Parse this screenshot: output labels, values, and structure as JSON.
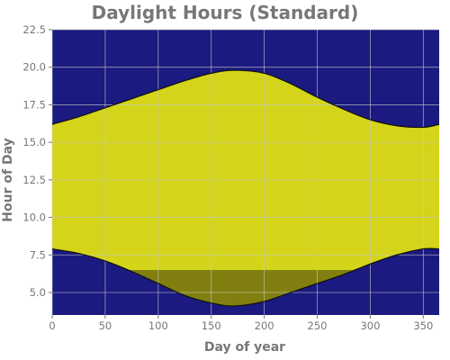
{
  "chart_data": {
    "type": "area",
    "title": "Daylight Hours (Standard)",
    "xlabel": "Day of year",
    "ylabel": "Hour of Day",
    "xlim": [
      0,
      365
    ],
    "ylim": [
      3.5,
      22.5
    ],
    "x_ticks": [
      "0",
      "50",
      "100",
      "150",
      "200",
      "250",
      "300",
      "350"
    ],
    "y_ticks": [
      "5.0",
      "7.5",
      "10.0",
      "12.5",
      "15.0",
      "17.5",
      "20.0",
      "22.5"
    ],
    "grid": true,
    "night_band_below": 6.5,
    "colors": {
      "night": "#1a1a80",
      "daylight": "#d4d41a",
      "pre_band_daylight": "#807f10",
      "curve": "#111111",
      "grid": "#c8c8c8",
      "text": "#777777"
    },
    "series": [
      {
        "role": "sunrise",
        "x": [
          0,
          25,
          50,
          75,
          100,
          125,
          150,
          172,
          200,
          225,
          250,
          275,
          300,
          325,
          350,
          365
        ],
        "y": [
          7.9,
          7.6,
          7.1,
          6.4,
          5.6,
          4.8,
          4.3,
          4.1,
          4.4,
          5.0,
          5.6,
          6.2,
          6.9,
          7.5,
          7.9,
          7.9
        ]
      },
      {
        "role": "sunset",
        "x": [
          0,
          25,
          50,
          75,
          100,
          125,
          150,
          172,
          200,
          225,
          250,
          275,
          300,
          325,
          350,
          365
        ],
        "y": [
          16.2,
          16.7,
          17.3,
          17.9,
          18.5,
          19.1,
          19.6,
          19.8,
          19.6,
          18.9,
          18.0,
          17.2,
          16.5,
          16.1,
          16.0,
          16.2
        ]
      }
    ]
  }
}
